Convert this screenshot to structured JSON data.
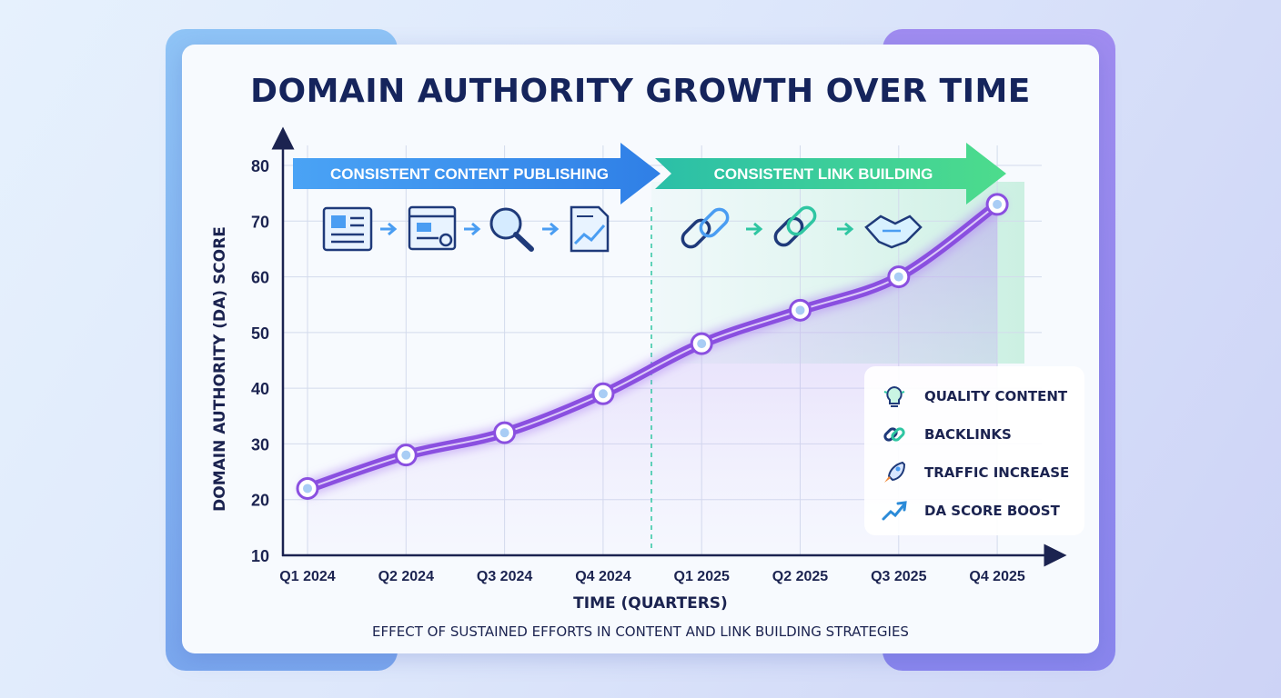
{
  "chart_data": {
    "type": "line",
    "title": "DOMAIN AUTHORITY GROWTH OVER TIME",
    "subtitle": "EFFECT OF SUSTAINED EFFORTS IN CONTENT AND LINK BUILDING STRATEGIES",
    "xlabel": "TIME (QUARTERS)",
    "ylabel": "DOMAIN AUTHORITY (DA) SCORE",
    "categories": [
      "Q1 2024",
      "Q2 2024",
      "Q3 2024",
      "Q4 2024",
      "Q1 2025",
      "Q2 2025",
      "Q3 2025",
      "Q4 2025"
    ],
    "series": [
      {
        "values": [
          22,
          28,
          32,
          39,
          48,
          54,
          60,
          73
        ]
      }
    ],
    "ylim": [
      10,
      80
    ],
    "yticks": [
      10,
      20,
      30,
      40,
      50,
      60,
      70,
      80
    ],
    "grid": true,
    "phases": [
      {
        "label": "CONSISTENT CONTENT PUBLISHING"
      },
      {
        "label": "CONSISTENT LINK BUILDING"
      }
    ],
    "legend": [
      {
        "label": "QUALITY CONTENT",
        "icon": "lightbulb-icon"
      },
      {
        "label": "BACKLINKS",
        "icon": "chain-link-icon"
      },
      {
        "label": "TRAFFIC INCREASE",
        "icon": "rocket-icon"
      },
      {
        "label": "DA SCORE BOOST",
        "icon": "trend-arrow-icon"
      }
    ],
    "legend_position": "bottom-right",
    "colors": {
      "line": "#8a4fe0",
      "line_glow": "#b58cf3",
      "content_arrow": "#3d8ff2",
      "link_arrow": "#2fc6a2",
      "text": "#1b2350"
    }
  }
}
